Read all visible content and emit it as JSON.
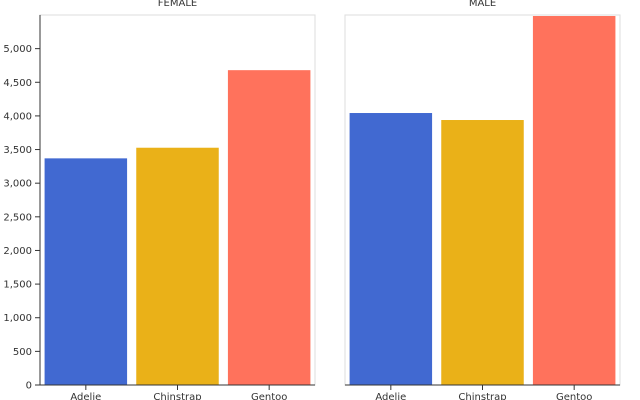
{
  "chart_data": {
    "type": "bar",
    "facet_field": "sex",
    "categories": [
      "Adelie",
      "Chinstrap",
      "Gentoo"
    ],
    "colors": {
      "Adelie": "#4169d1",
      "Chinstrap": "#eab118",
      "Gentoo": "#ff725c"
    },
    "ylim": [
      0,
      5500
    ],
    "yticks": [
      0,
      500,
      1000,
      1500,
      2000,
      2500,
      3000,
      3500,
      4000,
      4500,
      5000
    ],
    "ytick_labels": [
      "0",
      "500",
      "1,000",
      "1,500",
      "2,000",
      "2,500",
      "3,000",
      "3,500",
      "4,000",
      "4,500",
      "5,000"
    ],
    "facets": [
      {
        "title": "FEMALE",
        "values": [
          3369,
          3527,
          4680
        ]
      },
      {
        "title": "MALE",
        "values": [
          4043,
          3939,
          5485
        ]
      }
    ],
    "xlabel": "",
    "ylabel": "",
    "grid": false
  }
}
